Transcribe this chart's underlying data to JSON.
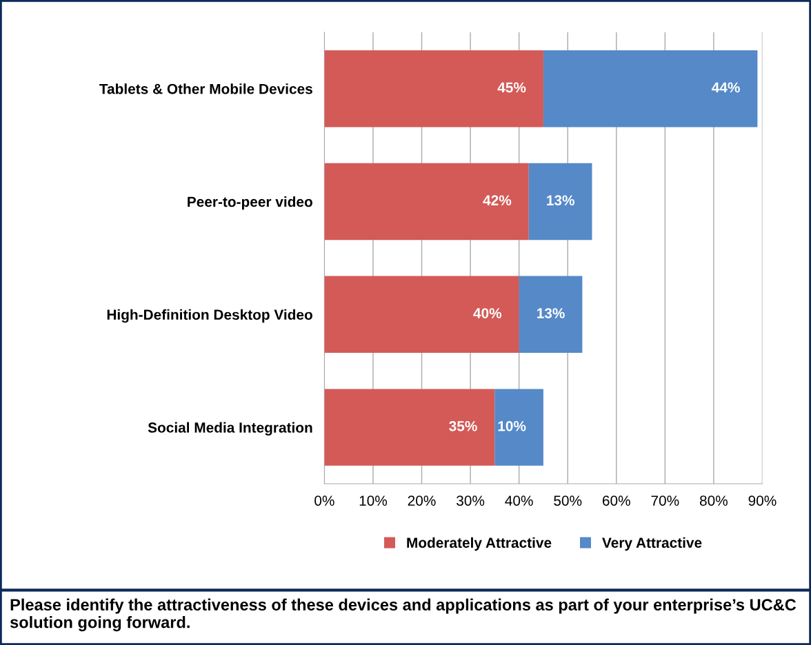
{
  "chart_data": {
    "type": "bar",
    "orientation": "horizontal",
    "stacked": true,
    "categories": [
      "Tablets & Other Mobile Devices",
      "Peer-to-peer video",
      "High-Definition Desktop Video",
      "Social Media Integration"
    ],
    "series": [
      {
        "name": "Moderately Attractive",
        "color": "#d35a57",
        "values": [
          45,
          42,
          40,
          35
        ],
        "value_labels": [
          "45%",
          "42%",
          "40%",
          "35%"
        ]
      },
      {
        "name": "Very Attractive",
        "color": "#5589c8",
        "values": [
          44,
          13,
          13,
          10
        ],
        "value_labels": [
          "44%",
          "13%",
          "13%",
          "10%"
        ]
      }
    ],
    "xlim": [
      0,
      90
    ],
    "xticks": [
      {
        "value": 0,
        "label": "0%"
      },
      {
        "value": 10,
        "label": "10%"
      },
      {
        "value": 20,
        "label": "20%"
      },
      {
        "value": 30,
        "label": "30%"
      },
      {
        "value": 40,
        "label": "40%"
      },
      {
        "value": 50,
        "label": "50%"
      },
      {
        "value": 60,
        "label": "60%"
      },
      {
        "value": 70,
        "label": "70%"
      },
      {
        "value": 80,
        "label": "80%"
      },
      {
        "value": 90,
        "label": "90%"
      }
    ],
    "grid": "x",
    "legend": "bottom",
    "annotations": [
      "Please identify the attractiveness of these devices and applications as part of your enterprise’s UC&C solution going forward."
    ]
  }
}
